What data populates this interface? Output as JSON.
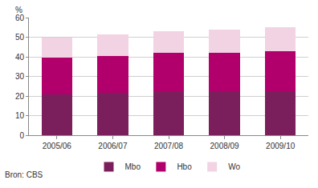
{
  "chart_data": {
    "type": "bar",
    "stacked": true,
    "categories": [
      "2005/06",
      "2006/07",
      "2007/08",
      "2008/09",
      "2009/10"
    ],
    "series": [
      {
        "name": "Mbo",
        "color": "#7b1f5c",
        "values": [
          21,
          21.5,
          22,
          22.5,
          22.5
        ]
      },
      {
        "name": "Hbo",
        "color": "#b1006c",
        "values": [
          18.5,
          19,
          20,
          19.5,
          20.5
        ]
      },
      {
        "name": "Wo",
        "color": "#f2d3e3",
        "values": [
          10.5,
          11,
          11,
          12,
          12
        ]
      }
    ],
    "y_label": "%",
    "source": "Bron: CBS",
    "ylim": [
      0,
      60
    ],
    "yticks": [
      0,
      10,
      20,
      30,
      40,
      50,
      60
    ],
    "grid": true,
    "legend": "bottom"
  }
}
